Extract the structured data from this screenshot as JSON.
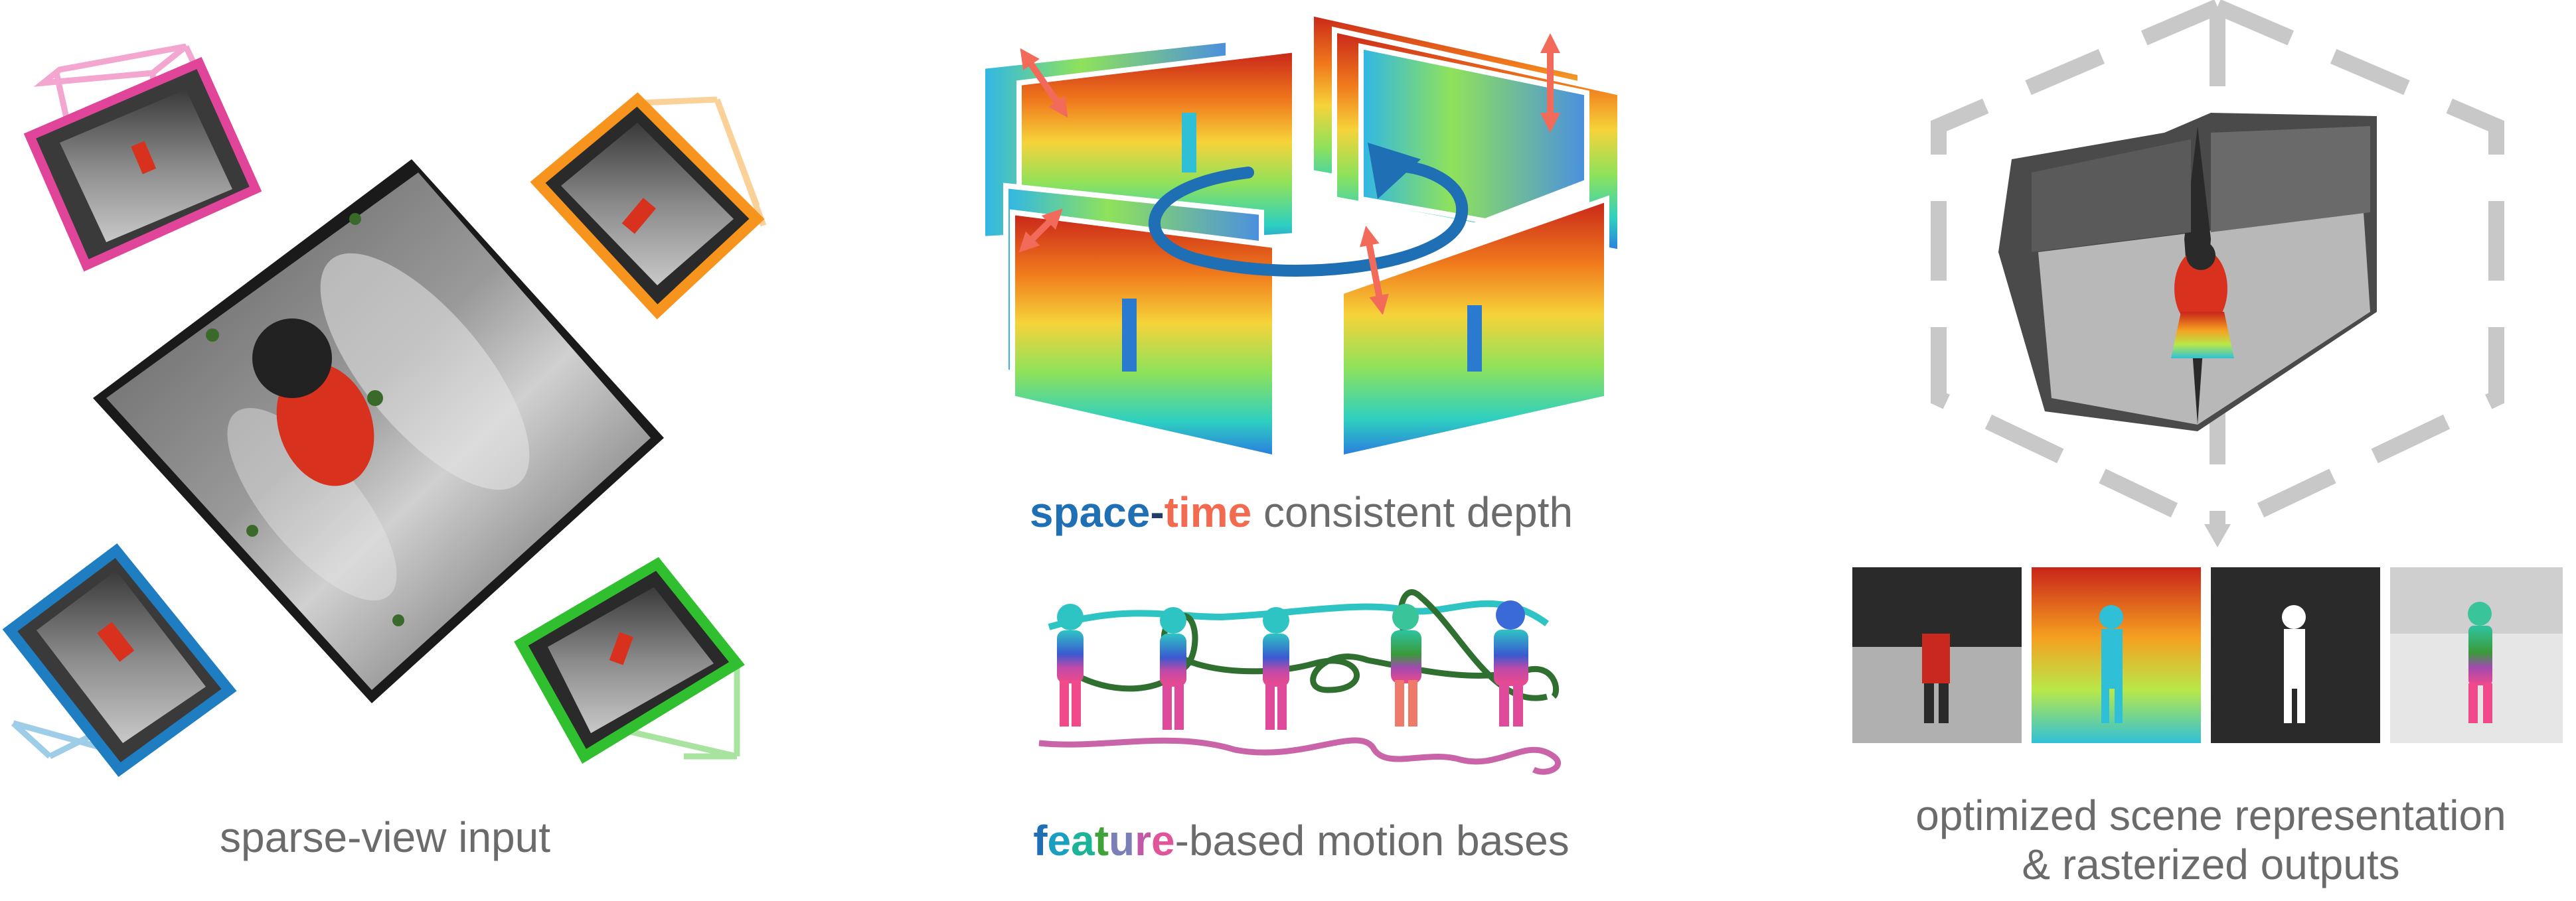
{
  "panels": {
    "input": {
      "caption": "sparse-view input",
      "frame_colors": [
        "#e0459a",
        "#f7941d",
        "#1f7dc2",
        "#2fbf2f"
      ]
    },
    "depth": {
      "caption_parts": [
        {
          "text": "space",
          "color": "#1f6fb5"
        },
        {
          "text": "-",
          "color": "#1f3d66"
        },
        {
          "text": "time",
          "color": "#f26b50"
        },
        {
          "text": " consistent depth",
          "color": "#6b6b6b"
        }
      ],
      "arrow_color": "#f26b5a",
      "rotation_arrow_color": "#1f6fb5"
    },
    "motion": {
      "caption_parts": [
        {
          "text": "f",
          "color": "#1f6fb5"
        },
        {
          "text": "e",
          "color": "#1a9fc0"
        },
        {
          "text": "a",
          "color": "#1bb39a"
        },
        {
          "text": "t",
          "color": "#3fa33a"
        },
        {
          "text": "u",
          "color": "#7a7fb8"
        },
        {
          "text": "r",
          "color": "#c05aa8"
        },
        {
          "text": "e",
          "color": "#e0559a"
        },
        {
          "text": "-based motion bases",
          "color": "#6b6b6b"
        }
      ],
      "trajectory_colors": [
        "#2ec4c4",
        "#2f6f2f",
        "#c964a8"
      ]
    },
    "output": {
      "caption_line1": "optimized scene representation",
      "caption_line2": "& rasterized outputs",
      "outputs": [
        "rgb-render",
        "depth-render",
        "mask-render",
        "motion-render"
      ]
    }
  }
}
